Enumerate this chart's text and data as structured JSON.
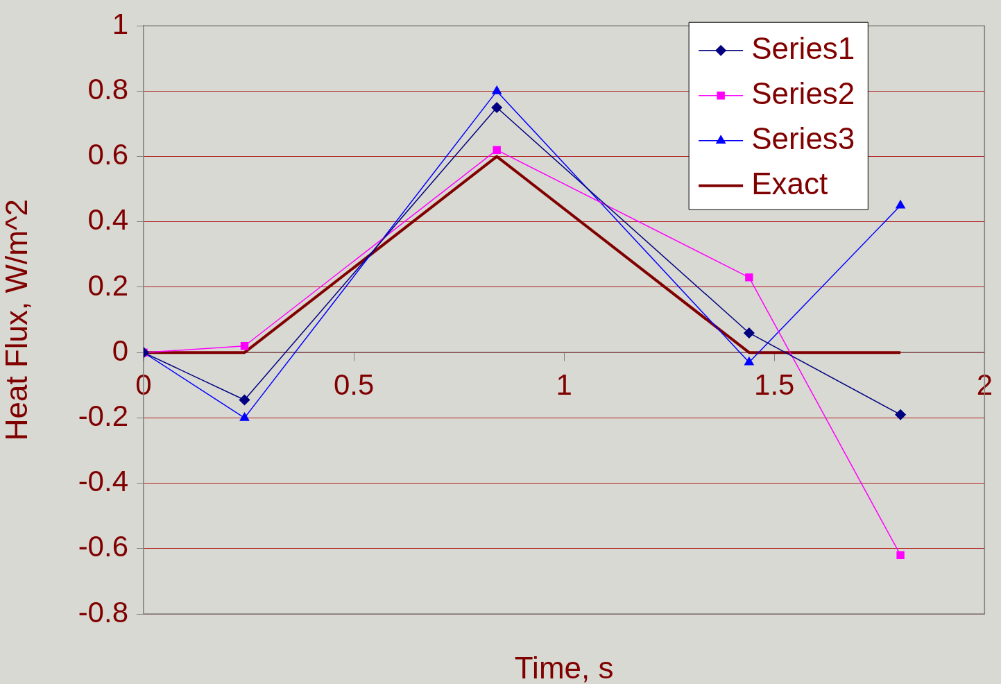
{
  "chart_data": {
    "type": "line",
    "xlabel": "Time, s",
    "ylabel": "Heat Flux, W/m^2",
    "x": [
      0,
      0.24,
      0.84,
      1.44,
      1.8
    ],
    "series": [
      {
        "name": "Series1",
        "color": "#000080",
        "values": [
          0,
          -0.145,
          0.75,
          0.06,
          -0.19
        ],
        "marker": "diamond"
      },
      {
        "name": "Series2",
        "color": "#ff00ff",
        "values": [
          0,
          0.02,
          0.62,
          0.23,
          -0.62
        ],
        "marker": "square"
      },
      {
        "name": "Series3",
        "color": "#0000ff",
        "values": [
          0,
          -0.2,
          0.8,
          -0.03,
          0.45
        ],
        "marker": "triangle"
      },
      {
        "name": "Exact",
        "color": "#800000",
        "values": [
          0,
          0,
          0.6,
          0,
          0
        ],
        "marker": "none"
      }
    ],
    "xlim": [
      0,
      2
    ],
    "xticks": [
      0,
      0.5,
      1,
      1.5,
      2
    ],
    "ylim": [
      -0.8,
      1
    ],
    "yticks": [
      -0.8,
      -0.6,
      -0.4,
      -0.2,
      0,
      0.2,
      0.4,
      0.6,
      0.8,
      1
    ],
    "grid": "y",
    "legend": "top right",
    "line_style": "solid"
  }
}
